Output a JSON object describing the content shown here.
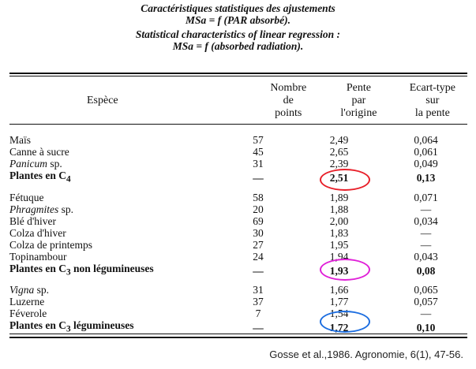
{
  "titles": {
    "fr_line1": "Caractéristiques statistiques des ajustements",
    "fr_line2": "MSa = f (PAR absorbé).",
    "en_line1": "Statistical characteristics of linear regression :",
    "en_line2": "MSa = f (absorbed radiation)."
  },
  "headers": {
    "species": "Espèce",
    "count_1": "Nombre",
    "count_2": "de",
    "count_3": "points",
    "slope_1": "Pente",
    "slope_2": "par",
    "slope_3": "l'origine",
    "sd_1": "Ecart-type",
    "sd_2": "sur",
    "sd_3": "la pente"
  },
  "rows": [
    {
      "species": "Maïs",
      "points": "57",
      "slope": "2,49",
      "sd": "0,064"
    },
    {
      "species": "Canne à sucre",
      "points": "45",
      "slope": "2,65",
      "sd": "0,061"
    },
    {
      "species_italic": "Panicum",
      "species_rest": " sp.",
      "points": "31",
      "slope": "2,39",
      "sd": "0,049"
    },
    {
      "species": "Plantes en C",
      "sub": "4",
      "points": "—",
      "slope": "2,51",
      "sd": "0,13"
    },
    {
      "species": "Fétuque",
      "points": "58",
      "slope": "1,89",
      "sd": "0,071"
    },
    {
      "species_italic": "Phragmites",
      "species_rest": " sp.",
      "points": "20",
      "slope": "1,88",
      "sd": "—"
    },
    {
      "species": "Blé d'hiver",
      "points": "69",
      "slope": "2,00",
      "sd": "0,034"
    },
    {
      "species": "Colza d'hiver",
      "points": "30",
      "slope": "1,83",
      "sd": "—"
    },
    {
      "species": "Colza de printemps",
      "points": "27",
      "slope": "1,95",
      "sd": "—"
    },
    {
      "species": "Topinambour",
      "points": "24",
      "slope": "1,94",
      "sd": "0,043"
    },
    {
      "species_pre": "Plantes en C",
      "sub": "3",
      "species_post": " non légumineuses",
      "points": "—",
      "slope": "1,93",
      "sd": "0,08"
    },
    {
      "species_italic": "Vigna",
      "species_rest": " sp.",
      "points": "31",
      "slope": "1,66",
      "sd": "0,065"
    },
    {
      "species": "Luzerne",
      "points": "37",
      "slope": "1,77",
      "sd": "0,057"
    },
    {
      "species": "Féverole",
      "points": "7",
      "slope": "1,54",
      "sd": "—"
    },
    {
      "species_pre": "Plantes en C",
      "sub": "3",
      "species_post": " légumineuses",
      "points": "—",
      "slope": "1,72",
      "sd": "0,10"
    }
  ],
  "annotations": {
    "c4_oval_color": "#e8202a",
    "c3_non_leg_oval_color": "#e020d8",
    "c3_leg_oval_color": "#1d6ee0"
  },
  "reference": "Gosse et al.,1986. Agronomie, 6(1), 47-56."
}
